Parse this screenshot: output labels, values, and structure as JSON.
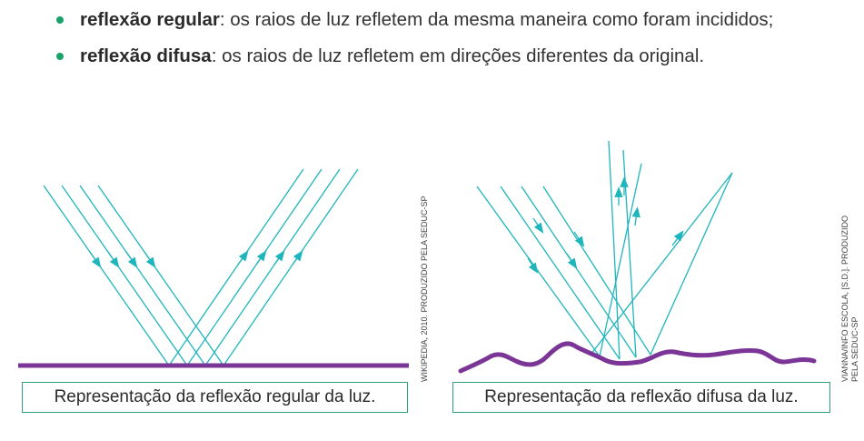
{
  "bullets": [
    {
      "term": "reflexão regular",
      "text": ": os raios de luz refletem da mesma maneira como foram incididos;"
    },
    {
      "term": "reflexão difusa",
      "text": ": os raios de luz refletem em direções diferentes da original."
    }
  ],
  "figures": {
    "regular": {
      "caption": "Representação da reflexão regular da luz.",
      "credit": "WIKIPEDIA, 2010. PRODUZIDO PELA SEDUC-SP"
    },
    "diffuse": {
      "caption": "Representação da reflexão difusa da luz.",
      "credit_line1": "VIANNA/INFO ESCOLA, [S.D.]. PRODUZIDO",
      "credit_line2": "PELA SEDUC-SP"
    }
  },
  "colors": {
    "ray": "#1fb5bd",
    "surface": "#7a3596",
    "bullet": "#18a36a",
    "caption_border": "#2fa07a"
  }
}
